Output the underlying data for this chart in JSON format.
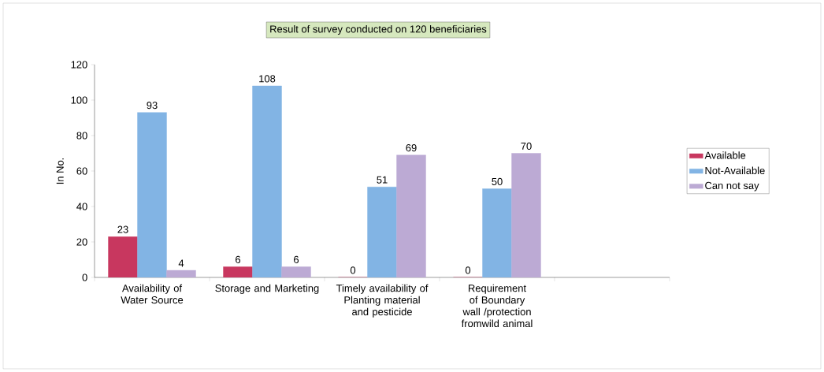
{
  "chart_data": {
    "type": "bar",
    "title": "Result of survey conducted on 120 beneficiaries",
    "ylabel": "In No.",
    "categories": [
      "Availability of Water Source",
      "Storage and Marketing",
      "Timely availability of Planting material and pesticide",
      "Requirement of Boundary wall /protection fromwild animal",
      null
    ],
    "series": [
      {
        "name": "Available",
        "color": "#c8375f",
        "values": [
          23,
          6,
          0,
          0,
          null
        ]
      },
      {
        "name": "Not-Available",
        "color": "#82b4e4",
        "values": [
          93,
          108,
          51,
          50,
          null
        ]
      },
      {
        "name": "Can not say",
        "color": "#bcaad4",
        "values": [
          4,
          6,
          69,
          70,
          null
        ]
      }
    ],
    "ylim": [
      0,
      120
    ],
    "yticks": [
      0,
      20,
      40,
      60,
      80,
      100,
      120
    ],
    "data_labels": true,
    "legend": "right",
    "grid": false
  }
}
